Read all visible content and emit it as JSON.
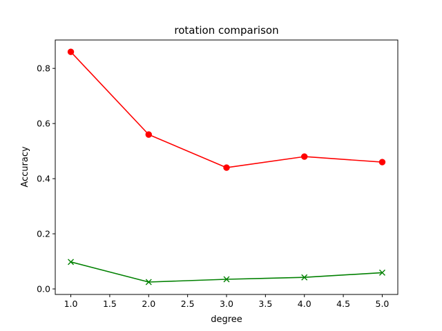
{
  "chart_data": {
    "type": "line",
    "title": "rotation comparison",
    "xlabel": "degree",
    "ylabel": "Accuracy",
    "x": [
      1.0,
      2.0,
      3.0,
      4.0,
      5.0
    ],
    "xlim": [
      0.8,
      5.2
    ],
    "ylim": [
      -0.02,
      0.903
    ],
    "xticks": [
      1.0,
      1.5,
      2.0,
      2.5,
      3.0,
      3.5,
      4.0,
      4.5,
      5.0
    ],
    "xtick_labels": [
      "1.0",
      "1.5",
      "2.0",
      "2.5",
      "3.0",
      "3.5",
      "4.0",
      "4.5",
      "5.0"
    ],
    "yticks": [
      0.0,
      0.2,
      0.4,
      0.6,
      0.8
    ],
    "ytick_labels": [
      "0.0",
      "0.2",
      "0.4",
      "0.6",
      "0.8"
    ],
    "grid": false,
    "legend": false,
    "series": [
      {
        "values": [
          0.86,
          0.56,
          0.44,
          0.48,
          0.46
        ],
        "color": "#ff0000",
        "marker": "circle"
      },
      {
        "values": [
          0.098,
          0.025,
          0.035,
          0.042,
          0.059
        ],
        "color": "#008000",
        "marker": "x"
      }
    ]
  }
}
